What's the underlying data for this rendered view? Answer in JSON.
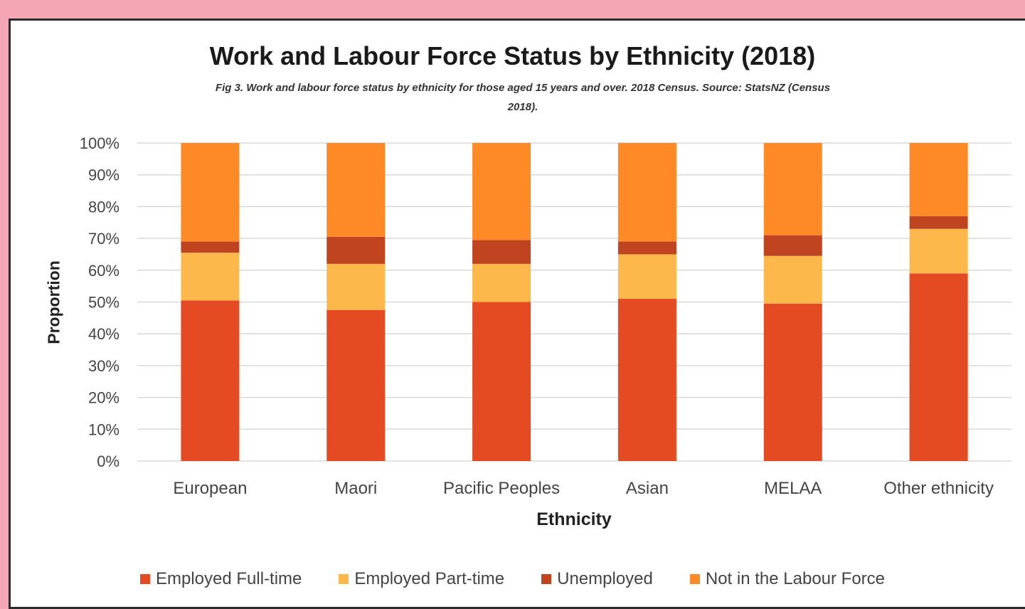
{
  "chart_data": {
    "type": "bar",
    "stacked": true,
    "title": "Work and Labour Force Status by Ethnicity (2018)",
    "subtitle_line1": "Fig 3. Work and labour force status by ethnicity for those aged 15 years and over. 2018  Census. Source: StatsNZ (Census",
    "subtitle_line2": "2018).",
    "xlabel": "Ethnicity",
    "ylabel": "Proportion",
    "ylim": [
      0,
      100
    ],
    "yticks": [
      "0%",
      "10%",
      "20%",
      "30%",
      "40%",
      "50%",
      "60%",
      "70%",
      "80%",
      "90%",
      "100%"
    ],
    "categories": [
      "European",
      "Maori",
      "Pacific Peoples",
      "Asian",
      "MELAA",
      "Other ethnicity"
    ],
    "series": [
      {
        "name": "Employed Full-time",
        "color": "#e54b22",
        "values": [
          50.5,
          47.5,
          50,
          51,
          49.5,
          59
        ]
      },
      {
        "name": "Employed Part-time",
        "color": "#fdb84b",
        "values": [
          15,
          14.5,
          12,
          14,
          15,
          14
        ]
      },
      {
        "name": "Unemployed",
        "color": "#c0441f",
        "values": [
          3.5,
          8.5,
          7.5,
          4,
          6.5,
          4
        ]
      },
      {
        "name": "Not in the Labour Force",
        "color": "#fd8a27",
        "values": [
          31,
          29.5,
          30.5,
          31,
          29,
          23
        ]
      }
    ],
    "grid": true,
    "legend_position": "bottom"
  }
}
